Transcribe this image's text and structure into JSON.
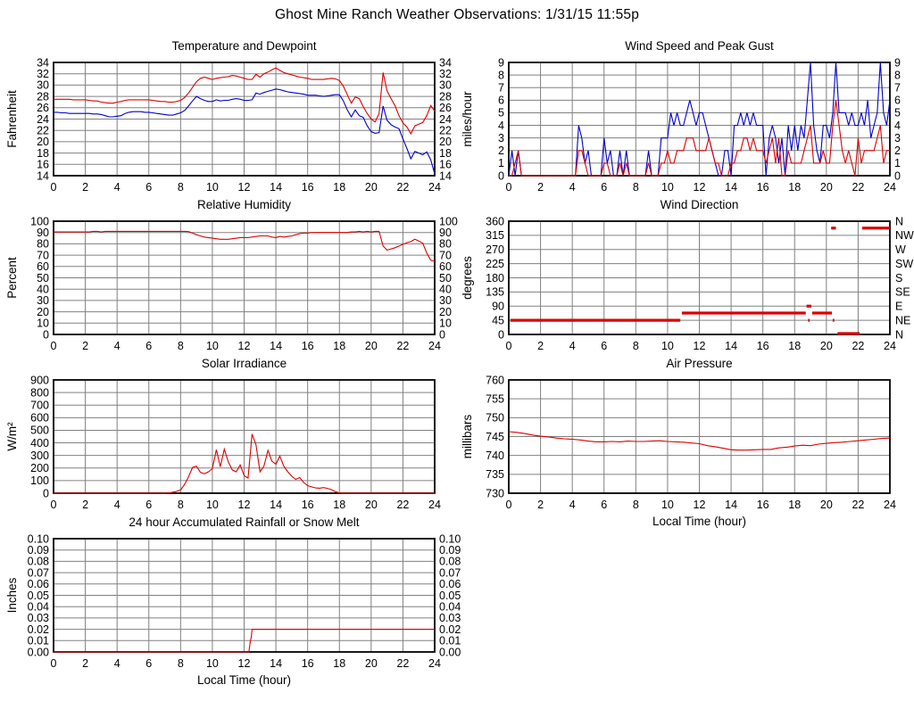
{
  "header": {
    "title": "Ghost Mine Ranch Weather Observations: 1/31/15 11:55p"
  },
  "colors": {
    "red": "#dd0000",
    "blue": "#0000cc",
    "grid": "#808080",
    "axis": "#000000"
  },
  "chart_data": [
    {
      "id": "temperature",
      "type": "line",
      "title": "Temperature and Dewpoint",
      "ylabel": "Fahrenheit",
      "xlabel": "",
      "ymin": 14,
      "ymax": 34,
      "ystep": 2,
      "ydecimals": 0,
      "xmin": 0,
      "xmax": 24,
      "xstep": 2,
      "right_labels": "mirror",
      "grid": true,
      "series": [
        {
          "name": "temperature",
          "color": "#dd0000",
          "x_start": 0,
          "x_step": 0.25,
          "values": [
            27.5,
            27.5,
            27.5,
            27.5,
            27.5,
            27.4,
            27.4,
            27.4,
            27.4,
            27.3,
            27.2,
            27.2,
            27.0,
            26.9,
            26.8,
            26.8,
            27.0,
            27.1,
            27.3,
            27.4,
            27.4,
            27.4,
            27.4,
            27.4,
            27.4,
            27.3,
            27.2,
            27.1,
            27.1,
            27.0,
            27.0,
            27.1,
            27.3,
            27.8,
            28.6,
            29.6,
            30.6,
            31.2,
            31.4,
            31.2,
            31.0,
            31.2,
            31.3,
            31.4,
            31.5,
            31.7,
            31.6,
            31.4,
            31.2,
            31.0,
            31.0,
            31.9,
            31.4,
            32.0,
            32.3,
            32.7,
            33.0,
            32.6,
            32.2,
            32.0,
            31.8,
            31.6,
            31.4,
            31.3,
            31.2,
            31.0,
            31.0,
            31.0,
            31.0,
            31.1,
            31.2,
            31.1,
            30.8,
            29.8,
            28.3,
            26.8,
            27.9,
            27.6,
            26.2,
            25.0,
            24.0,
            23.5,
            25.0,
            32.2,
            29.0,
            27.6,
            26.4,
            24.6,
            23.3,
            22.6,
            21.4,
            22.8,
            23.1,
            23.4,
            24.6,
            26.4,
            25.4
          ]
        },
        {
          "name": "dewpoint",
          "color": "#0000cc",
          "x_start": 0,
          "x_step": 0.25,
          "values": [
            25.2,
            25.2,
            25.1,
            25.1,
            25.0,
            25.0,
            25.0,
            25.0,
            25.0,
            25.0,
            24.9,
            24.9,
            24.8,
            24.6,
            24.4,
            24.4,
            24.5,
            24.6,
            25.0,
            25.2,
            25.3,
            25.3,
            25.3,
            25.2,
            25.2,
            25.1,
            25.0,
            24.9,
            24.8,
            24.7,
            24.7,
            24.9,
            25.1,
            25.5,
            26.3,
            27.2,
            28.0,
            27.6,
            27.3,
            27.1,
            27.1,
            27.4,
            27.2,
            27.3,
            27.3,
            27.5,
            27.6,
            27.5,
            27.3,
            27.3,
            27.4,
            28.6,
            28.4,
            28.7,
            28.9,
            29.1,
            29.3,
            29.2,
            29.0,
            28.8,
            28.7,
            28.6,
            28.5,
            28.4,
            28.2,
            28.2,
            28.2,
            28.1,
            28.0,
            28.1,
            28.2,
            28.3,
            28.3,
            27.2,
            25.6,
            24.4,
            25.6,
            24.6,
            24.3,
            22.8,
            21.8,
            21.5,
            21.6,
            26.3,
            23.8,
            23.0,
            22.6,
            22.3,
            20.5,
            18.8,
            17.0,
            18.3,
            18.0,
            17.7,
            18.2,
            16.8,
            14.3
          ]
        }
      ]
    },
    {
      "id": "wind-speed",
      "type": "line",
      "title": "Wind Speed and Peak Gust",
      "ylabel": "miles/hour",
      "xlabel": "",
      "ymin": 0,
      "ymax": 9,
      "ystep": 1,
      "ydecimals": 0,
      "xmin": 0,
      "xmax": 24,
      "xstep": 2,
      "right_labels": "mirror",
      "grid": true,
      "series": [
        {
          "name": "peak-gust",
          "color": "#0000cc",
          "x_start": 0,
          "x_step": 0.2,
          "values": [
            0,
            2,
            0,
            2,
            0,
            0,
            0,
            0,
            0,
            0,
            0,
            0,
            0,
            0,
            0,
            0,
            0,
            0,
            0,
            0,
            0,
            0,
            4,
            3,
            1,
            2,
            0,
            0,
            0,
            0,
            3,
            1,
            2,
            0,
            0,
            2,
            0,
            2,
            0,
            0,
            0,
            0,
            0,
            0,
            2,
            0,
            0,
            0,
            3,
            3,
            3,
            5,
            4,
            5,
            4,
            4,
            5,
            6,
            5,
            4,
            5,
            5,
            4,
            3,
            2,
            1,
            0,
            0,
            2,
            2,
            0,
            4,
            4,
            5,
            4,
            5,
            4,
            5,
            4,
            4,
            4,
            0,
            3,
            4,
            3,
            1,
            3,
            0,
            4,
            2,
            4,
            2,
            4,
            3,
            6,
            9,
            4,
            2,
            1,
            4,
            4,
            3,
            5,
            9,
            5,
            5,
            5,
            4,
            5,
            4,
            4,
            5,
            4,
            6,
            3,
            4,
            5,
            9,
            5,
            4,
            6
          ]
        },
        {
          "name": "wind-speed",
          "color": "#dd0000",
          "x_start": 0,
          "x_step": 0.2,
          "values": [
            0,
            0,
            1,
            2,
            0,
            0,
            0,
            0,
            0,
            0,
            0,
            0,
            0,
            0,
            0,
            0,
            0,
            0,
            0,
            0,
            0,
            0,
            2,
            2,
            1,
            0,
            0,
            0,
            0,
            0,
            1,
            1,
            0,
            0,
            0,
            1,
            0,
            1,
            0,
            0,
            0,
            0,
            0,
            0,
            1,
            0,
            0,
            0,
            1,
            1,
            2,
            1,
            1,
            2,
            2,
            2,
            3,
            3,
            3,
            2,
            2,
            2,
            2,
            3,
            2,
            1,
            1,
            0,
            0,
            0,
            1,
            1,
            2,
            2,
            3,
            3,
            2,
            3,
            2,
            2,
            2,
            1,
            2,
            3,
            1,
            3,
            0,
            0,
            2,
            1,
            1,
            1,
            1,
            2,
            3,
            4,
            1,
            1,
            1,
            2,
            1,
            1,
            4,
            6,
            4,
            2,
            1,
            2,
            1,
            0,
            3,
            1,
            2,
            2,
            2,
            2,
            3,
            4,
            1,
            2,
            2
          ]
        }
      ]
    },
    {
      "id": "relative-humidity",
      "type": "line",
      "title": "Relative Humidity",
      "ylabel": "Percent",
      "xlabel": "",
      "ymin": 0,
      "ymax": 100,
      "ystep": 10,
      "ydecimals": 0,
      "xmin": 0,
      "xmax": 24,
      "xstep": 2,
      "right_labels": "mirror",
      "grid": true,
      "series": [
        {
          "name": "humidity",
          "color": "#dd0000",
          "x_start": 0,
          "x_step": 0.25,
          "values": [
            90.5,
            90.5,
            90.5,
            90.5,
            90.5,
            90.5,
            90.5,
            90.5,
            90.5,
            90.5,
            91.0,
            91.0,
            90.5,
            91.0,
            91.0,
            91.0,
            91.0,
            91.0,
            91.0,
            91.0,
            91.0,
            91.0,
            91.0,
            91.0,
            91.0,
            91.0,
            91.0,
            91.0,
            91.0,
            91.0,
            91.0,
            91.0,
            91.0,
            91.0,
            90.8,
            89.5,
            88.0,
            87.0,
            86.0,
            85.5,
            85.0,
            84.5,
            84.0,
            84.0,
            84.0,
            84.5,
            85.0,
            85.5,
            85.5,
            85.5,
            86.0,
            86.5,
            87.0,
            87.0,
            87.0,
            86.0,
            85.5,
            86.5,
            86.0,
            86.5,
            87.0,
            88.0,
            89.0,
            89.5,
            89.5,
            90.0,
            90.0,
            90.0,
            90.0,
            90.0,
            90.0,
            90.0,
            90.0,
            90.0,
            90.0,
            90.5,
            90.5,
            91.0,
            90.5,
            91.0,
            90.5,
            91.0,
            91.0,
            78.0,
            74.5,
            75.5,
            76.5,
            78.0,
            79.5,
            81.0,
            82.0,
            84.0,
            82.5,
            80.5,
            72.0,
            65.5,
            64.5
          ]
        }
      ]
    },
    {
      "id": "wind-direction",
      "type": "segments",
      "title": "Wind Direction",
      "ylabel": "degrees",
      "xlabel": "",
      "ymin": 0,
      "ymax": 360,
      "ystep": 45,
      "ydecimals": 0,
      "xmin": 0,
      "xmax": 24,
      "xstep": 2,
      "right_labels": [
        "N",
        "NE",
        "E",
        "SE",
        "S",
        "SW",
        "W",
        "NW",
        "N"
      ],
      "grid": true,
      "segments": [
        {
          "x1": 0.1,
          "x2": 10.8,
          "value": 45,
          "color": "#dd0000"
        },
        {
          "x1": 10.9,
          "x2": 18.7,
          "value": 68,
          "color": "#dd0000"
        },
        {
          "x1": 18.75,
          "x2": 19.05,
          "value": 90,
          "color": "#dd0000"
        },
        {
          "x1": 18.85,
          "x2": 18.95,
          "value": 45,
          "color": "#dd0000"
        },
        {
          "x1": 19.1,
          "x2": 20.35,
          "value": 68,
          "color": "#dd0000"
        },
        {
          "x1": 20.3,
          "x2": 20.6,
          "value": 338,
          "color": "#dd0000"
        },
        {
          "x1": 20.4,
          "x2": 20.5,
          "value": 45,
          "color": "#dd0000"
        },
        {
          "x1": 20.7,
          "x2": 22.1,
          "value": 3,
          "color": "#dd0000"
        },
        {
          "x1": 22.25,
          "x2": 24.0,
          "value": 338,
          "color": "#dd0000"
        }
      ]
    },
    {
      "id": "solar-irradiance",
      "type": "line",
      "title": "Solar Irradiance",
      "ylabel": "W/m²",
      "xlabel": "",
      "ymin": 0,
      "ymax": 900,
      "ystep": 100,
      "ydecimals": 0,
      "xmin": 0,
      "xmax": 24,
      "xstep": 2,
      "right_labels": "none",
      "grid": true,
      "series": [
        {
          "name": "solar",
          "color": "#dd0000",
          "x_start": 0,
          "x_step": 0.25,
          "values": [
            0,
            0,
            0,
            0,
            0,
            0,
            0,
            0,
            0,
            0,
            0,
            0,
            0,
            0,
            0,
            0,
            0,
            0,
            0,
            0,
            0,
            0,
            0,
            0,
            0,
            0,
            0,
            0,
            0,
            2,
            8,
            15,
            25,
            70,
            130,
            205,
            215,
            165,
            155,
            170,
            195,
            345,
            210,
            350,
            250,
            185,
            170,
            225,
            140,
            120,
            470,
            385,
            170,
            215,
            340,
            255,
            230,
            295,
            215,
            170,
            135,
            110,
            125,
            85,
            60,
            50,
            42,
            40,
            45,
            38,
            28,
            12,
            3,
            0,
            0,
            0,
            0,
            0,
            0,
            0,
            0,
            0,
            0,
            0,
            0,
            0,
            0,
            0,
            0,
            0,
            0,
            0,
            0,
            0,
            0,
            0,
            0
          ]
        }
      ]
    },
    {
      "id": "air-pressure",
      "type": "line",
      "title": "Air Pressure",
      "ylabel": "millibars",
      "xlabel": "Local Time (hour)",
      "ymin": 730,
      "ymax": 760,
      "ystep": 5,
      "ydecimals": 0,
      "xmin": 0,
      "xmax": 24,
      "xstep": 2,
      "right_labels": "none",
      "grid": true,
      "series": [
        {
          "name": "pressure",
          "color": "#dd0000",
          "x_start": 0,
          "x_step": 0.5,
          "values": [
            746.3,
            746.1,
            745.8,
            745.4,
            745.1,
            744.9,
            744.6,
            744.4,
            744.3,
            744.1,
            743.8,
            743.6,
            743.6,
            743.7,
            743.6,
            743.8,
            743.7,
            743.7,
            743.8,
            743.9,
            743.7,
            743.6,
            743.5,
            743.3,
            743.1,
            742.6,
            742.3,
            741.9,
            741.5,
            741.4,
            741.4,
            741.5,
            741.6,
            741.6,
            742.0,
            742.2,
            742.5,
            742.7,
            742.6,
            743.0,
            743.2,
            743.4,
            743.5,
            743.7,
            743.9,
            744.1,
            744.3,
            744.5,
            744.6
          ]
        }
      ]
    },
    {
      "id": "rainfall",
      "type": "line",
      "title": "24 hour Accumulated Rainfall or Snow Melt",
      "ylabel": "Inches",
      "xlabel": "Local Time (hour)",
      "ymin": 0,
      "ymax": 0.1,
      "ystep": 0.01,
      "ydecimals": 2,
      "xmin": 0,
      "xmax": 24,
      "xstep": 2,
      "right_labels": "mirror",
      "grid": true,
      "series": [
        {
          "name": "rainfall",
          "color": "#dd0000",
          "points": [
            [
              0,
              0
            ],
            [
              12.3,
              0
            ],
            [
              12.4,
              0.01
            ],
            [
              12.45,
              0.013
            ],
            [
              12.5,
              0.02
            ],
            [
              24,
              0.02
            ]
          ]
        }
      ]
    }
  ]
}
